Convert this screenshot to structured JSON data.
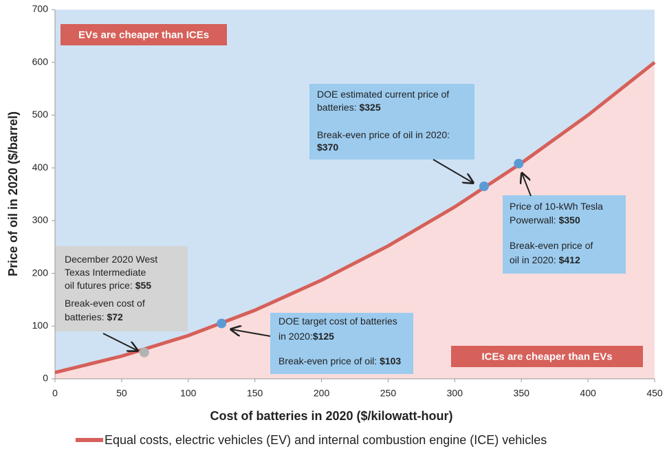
{
  "chart_data": {
    "type": "line",
    "x_label": "Cost of batteries in 2020 ($/kilowatt-hour)",
    "y_label": "Price of oil in 2020 ($/barrel)",
    "xlim": [
      0,
      450
    ],
    "xticks": [
      0,
      50,
      100,
      150,
      200,
      250,
      300,
      350,
      400,
      450
    ],
    "ylim": [
      0,
      700
    ],
    "yticks": [
      0,
      100,
      200,
      300,
      400,
      500,
      600,
      700
    ],
    "above_color": "#cfe2f3",
    "below_color": "#fadcdc",
    "series": [
      {
        "name": "Equal costs, electric vehicles (EV) and internal combustion engine (ICE) vehicles",
        "color": "#d6605a",
        "x": [
          0,
          50,
          100,
          150,
          200,
          250,
          300,
          350,
          400,
          450
        ],
        "values": [
          12,
          43,
          82,
          130,
          187,
          252,
          326,
          409,
          500,
          600
        ]
      }
    ],
    "points": {
      "x": [
        67,
        125,
        322,
        348
      ],
      "values": [
        50,
        105,
        365,
        408
      ],
      "colors": [
        "#b3b3b3",
        "#5b9bd5",
        "#5b9bd5",
        "#5b9bd5"
      ]
    },
    "regions": [
      "EVs are cheaper than ICEs",
      "ICEs are cheaper than EVs"
    ],
    "region_color": "#d6605a",
    "annotations": [
      {
        "color": "#d4d4d4",
        "lines": [
          {
            "text": "December 2020 West"
          },
          {
            "text": "Texas Intermediate"
          },
          {
            "text": "oil futures price: ",
            "bold": "$55"
          },
          {
            "text": "Break-even cost of"
          },
          {
            "text": "batteries: ",
            "bold": "$72"
          }
        ]
      },
      {
        "color": "#9ccbee",
        "lines": [
          {
            "text": "DOE target cost of batteries"
          },
          {
            "text": "in 2020:",
            "bold": "$125"
          },
          {
            "text": "Break-even price of oil: ",
            "bold": "$103"
          }
        ]
      },
      {
        "color": "#9ccbee",
        "lines": [
          {
            "text": "DOE estimated current price of"
          },
          {
            "text": "batteries: ",
            "bold": "$325"
          },
          {
            "text": "Break-even price of oil in 2020:"
          },
          {
            "bold": "$370"
          }
        ]
      },
      {
        "color": "#9ccbee",
        "lines": [
          {
            "text": "Price of 10-kWh Tesla"
          },
          {
            "text": "Powerwall: ",
            "bold": "$350"
          },
          {
            "text": "Break-even price of"
          },
          {
            "text": "oil in 2020: ",
            "bold": "$412"
          }
        ]
      }
    ]
  }
}
